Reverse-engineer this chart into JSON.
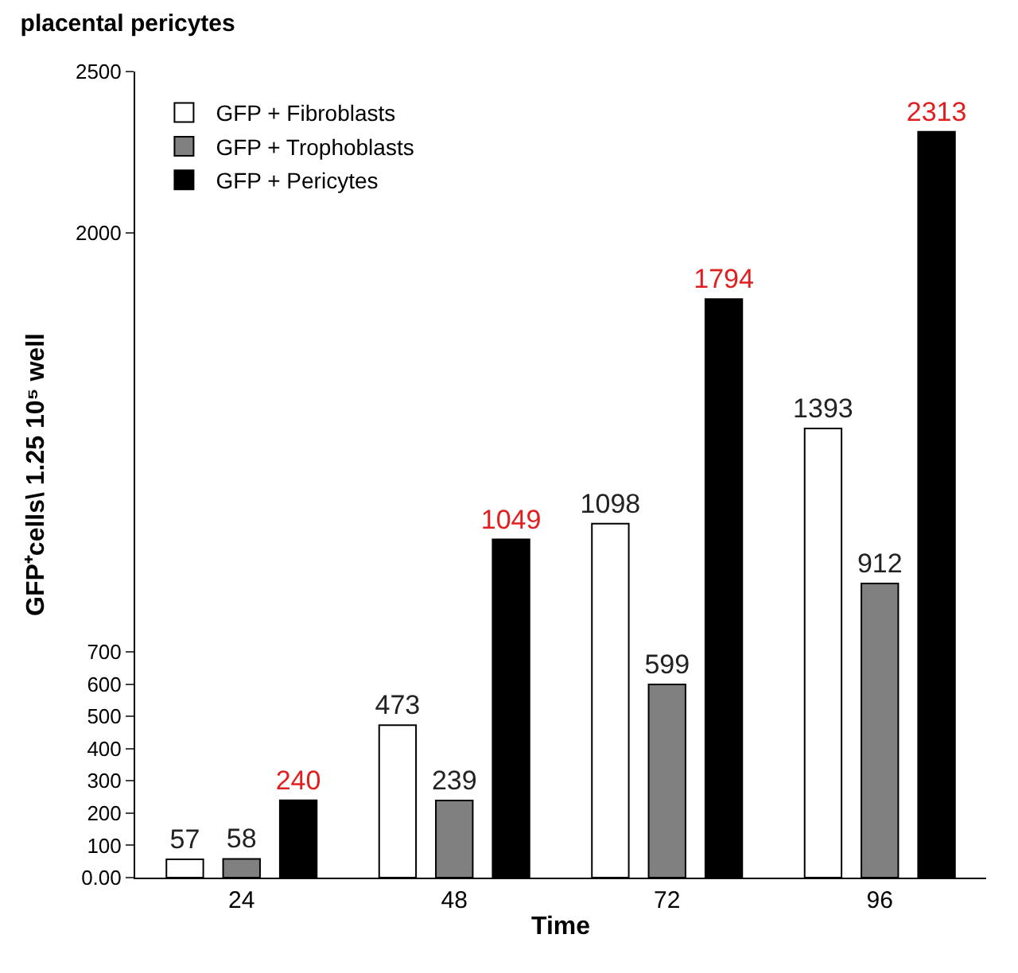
{
  "chart_data": {
    "type": "bar",
    "title": "placental pericytes",
    "xlabel": "Time",
    "ylabel": "GFP⁺cells\\ 1.25 10⁵ well",
    "categories": [
      "24",
      "48",
      "72",
      "96"
    ],
    "series": [
      {
        "name": "GFP + Fibroblasts",
        "color": "#ffffff",
        "values": [
          57,
          473,
          1098,
          1393
        ]
      },
      {
        "name": "GFP + Trophoblasts",
        "color": "#808080",
        "values": [
          58,
          239,
          599,
          912
        ]
      },
      {
        "name": "GFP + Pericytes",
        "color": "#000000",
        "values": [
          240,
          1049,
          1794,
          2313
        ]
      }
    ],
    "ylim": [
      0,
      2500
    ],
    "yticks": [
      {
        "value": 0,
        "label": "0.00"
      },
      100,
      200,
      300,
      400,
      500,
      600,
      700,
      2000,
      2500
    ],
    "data_labels": true,
    "legend": "top left"
  }
}
